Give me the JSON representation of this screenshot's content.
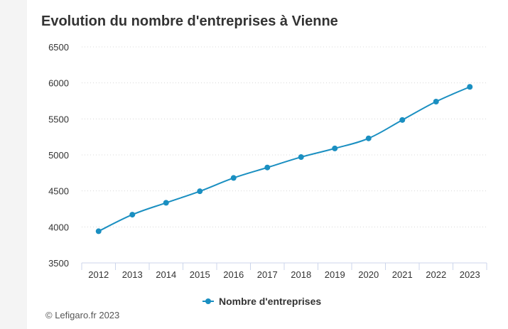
{
  "chart_data": {
    "type": "line",
    "title": "Evolution du nombre d'entreprises à Vienne",
    "categories": [
      "2012",
      "2013",
      "2014",
      "2015",
      "2016",
      "2017",
      "2018",
      "2019",
      "2020",
      "2021",
      "2022",
      "2023"
    ],
    "series": [
      {
        "name": "Nombre d'entreprises",
        "values": [
          3940,
          4170,
          4335,
          4495,
          4680,
          4825,
          4970,
          5090,
          5230,
          5485,
          5740,
          5945
        ],
        "color": "#1a8fc1"
      }
    ],
    "yticks": [
      "3500",
      "4000",
      "4500",
      "5000",
      "5500",
      "6000",
      "6500"
    ],
    "ylim": [
      3500,
      6500
    ],
    "grid": true,
    "legend": "bottom-center"
  },
  "credit": "© Lefigaro.fr 2023"
}
